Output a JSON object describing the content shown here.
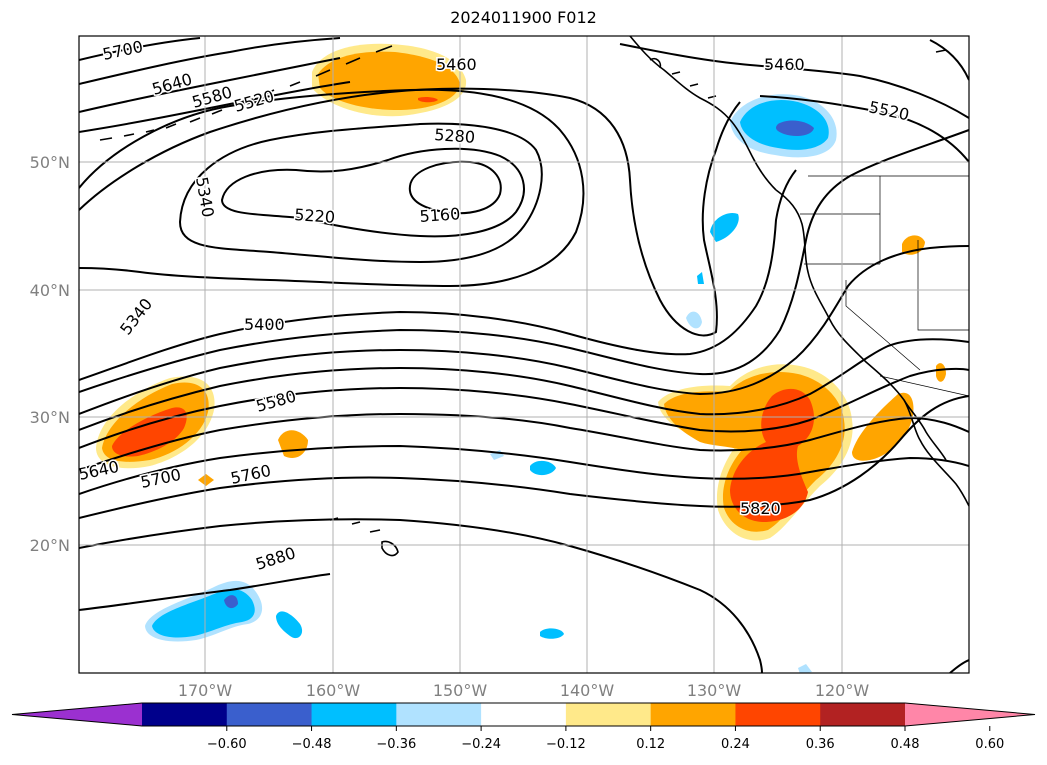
{
  "title": "2024011900 F012",
  "lat_labels": [
    "50°N",
    "40°N",
    "30°N",
    "20°N"
  ],
  "lon_labels": [
    "170°W",
    "160°W",
    "150°W",
    "140°W",
    "130°W",
    "120°W"
  ],
  "contour_labels": [
    "5700",
    "5640",
    "5580",
    "5520",
    "5460",
    "5460",
    "5520",
    "5280",
    "5340",
    "5220",
    "5160",
    "5340",
    "5400",
    "5580",
    "5640",
    "5700",
    "5760",
    "5820",
    "5880"
  ],
  "colorbar": {
    "ticks": [
      "−0.60",
      "−0.48",
      "−0.36",
      "−0.24",
      "−0.12",
      "0.12",
      "0.24",
      "0.36",
      "0.48",
      "0.60"
    ],
    "colors": [
      "#9b30d0",
      "#00008b",
      "#3a5fcd",
      "#00bfff",
      "#b0e2ff",
      "#ffffff",
      "#ffe98a",
      "#ffa500",
      "#ff4500",
      "#b22222",
      "#ff86a8"
    ]
  }
}
